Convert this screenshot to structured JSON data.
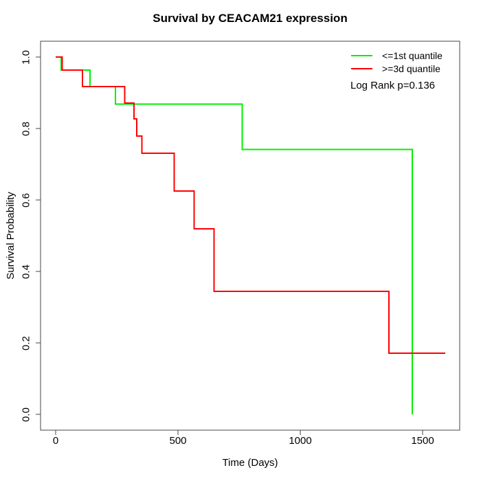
{
  "chart_data": {
    "type": "line",
    "subtype": "kaplan-meier-step-curves",
    "title": "Survival by CEACAM21 expression",
    "xlabel": "Time (Days)",
    "ylabel": "Survival Probability",
    "annotation": "Log Rank p=0.136",
    "x_ticks": [
      0,
      500,
      1000,
      1500
    ],
    "y_tick_labels": [
      "0.0",
      "0.2",
      "0.4",
      "0.6",
      "0.8",
      "1.0"
    ],
    "xlim": [
      -64,
      1657
    ],
    "ylim": [
      -0.04,
      1.04
    ],
    "grid": false,
    "legend_position": "top-right",
    "axis_color": "#444444",
    "text_color": "#000000",
    "line_width": 2,
    "series": [
      {
        "name": "<=1st quantile",
        "color": "#00ee00",
        "steps": [
          [
            0,
            1.0
          ],
          [
            22,
            0.963
          ],
          [
            140,
            0.917
          ],
          [
            245,
            0.868
          ],
          [
            763,
            0.741
          ],
          [
            1458,
            0.0
          ]
        ],
        "end_day": 1458
      },
      {
        "name": ">=3d quantile",
        "color": "#ff0000",
        "steps": [
          [
            0,
            1.0
          ],
          [
            26,
            0.963
          ],
          [
            110,
            0.917
          ],
          [
            283,
            0.871
          ],
          [
            320,
            0.827
          ],
          [
            332,
            0.779
          ],
          [
            353,
            0.731
          ],
          [
            484,
            0.625
          ],
          [
            566,
            0.519
          ],
          [
            648,
            0.344
          ],
          [
            1362,
            0.171
          ]
        ],
        "end_day": 1593
      }
    ]
  }
}
